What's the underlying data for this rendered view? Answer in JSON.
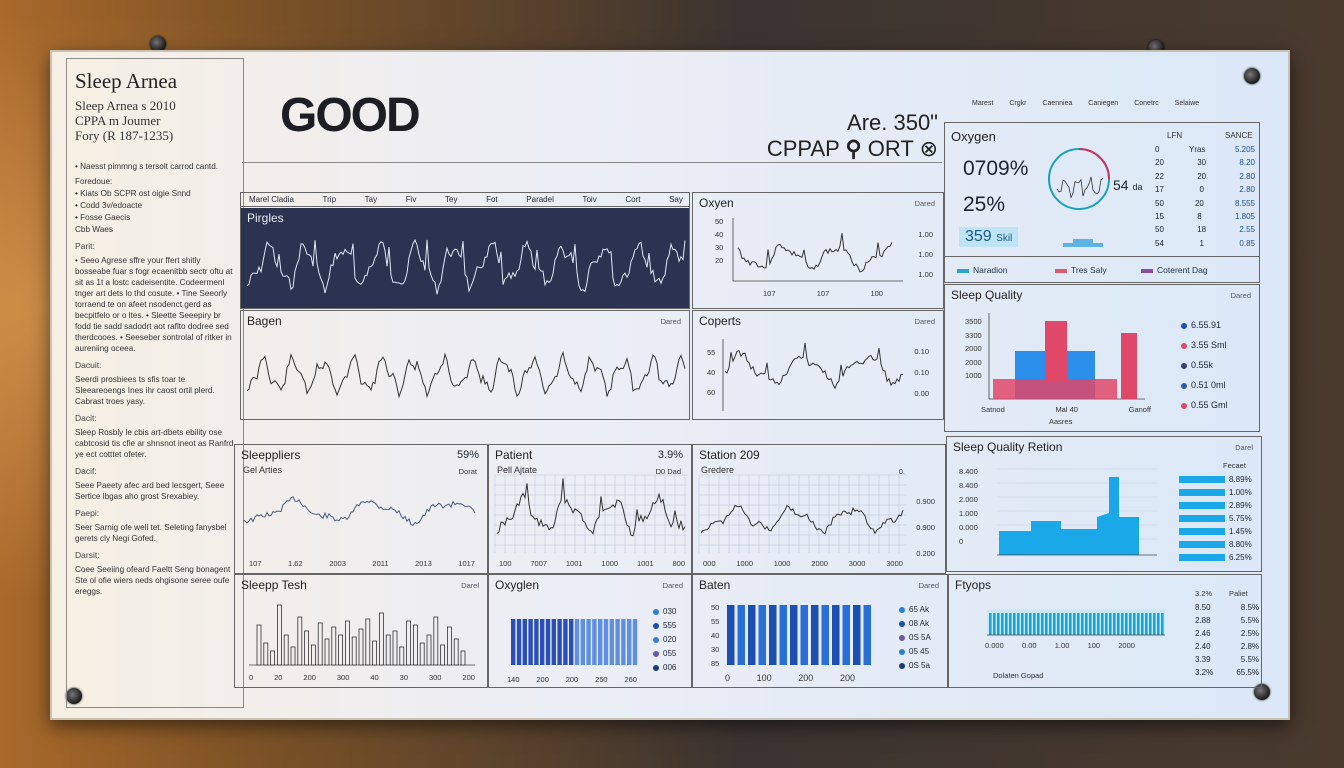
{
  "sidebar": {
    "title": "Sleep Arnea",
    "sub1": "Sleep Arnea s 2010",
    "sub2": "CPPA m Joumer",
    "sub3": "Fory (R 187-1235)",
    "items": [
      "• Naesst pimmng s tersolt carrod cantd.",
      "Foredoue:",
      "• Kiats Ob SCPR ost oigie Snnd",
      "• Codd 3v/edoacte",
      "• Fosse Gaecis",
      "Cbb Waes"
    ],
    "sections": [
      {
        "head": "Parit:",
        "text": "• Seeo Agrese sffre your ffert shitly bosseabe fuar s fogr ecaenitbb sectr oftu at sit as 1t a lostc cadeisentite. Codeermenl tnger art dets lo thd cosute. • Tine Seeorly torraend te on afeet nsodenct gerd as becpitfelo or o ltes. • Sleette Seeepiry br fodd tie sadd sadodrt aot raflto dodree sed therdcooes. • Seeseber sontrolal of ritker in aureniing oceea."
      },
      {
        "head": "Dacuit:",
        "text": "Seerdi prosbiees ts sfis toar te Sleeareoengs Ines ihr caost ortil plerd. Cabrast troes yasy."
      },
      {
        "head": "Dacit:",
        "text": "Sleep Rosbly le cbis art-dbets ebility ose cabtcosid tis cfie ar shnsnot ineot as Ranfrd ye ect cotttet ofeter."
      },
      {
        "head": "Dacif:",
        "text": "Seee Paeety afec ard bed lecsgert, Seee Sertice lbgas aho grost Srexabiey."
      },
      {
        "head": "Paepi:",
        "text": "Seer Sarnig ofe well tet. Seleting fanysbel gerets cly Negi Gofed."
      },
      {
        "head": "Darsit:",
        "text": "Coee Seeiing ofeard Faeltt Seng bonagent Ste ol ofie wiers neds ohgisone seree oufe ereggs."
      }
    ]
  },
  "header": {
    "status": "GOOD",
    "are": "Are. 350\"",
    "cpap": "CPPAP",
    "cpap2": "ORT",
    "links": "Marest Crgkr Caenniea Caniegen Conetrc Selaiwe"
  },
  "panels": {
    "tabs": [
      "Marel Cladia",
      "Trip",
      "Tay",
      "Fiv",
      "Tey",
      "Fot",
      "Paradel",
      "Toiv",
      "Cort",
      "Say"
    ],
    "purples_title": "Pirgles",
    "oxyen_title": "Oxyen",
    "oxyen_small": "Dared",
    "oxyen_y": [
      "50",
      "40",
      "30",
      "20"
    ],
    "oxyen_yr": [
      "1.00",
      "1.00",
      "1.00"
    ],
    "oxyen_x": [
      "107",
      "107",
      "100"
    ],
    "bagen_title": "Bagen",
    "bagen_small": "Dared",
    "coperts_title": "Coperts",
    "coperts_small": "Dared",
    "coperts_y": [
      "55",
      "40",
      "60"
    ],
    "coperts_yr": [
      "0.10",
      "0.10",
      "0.00"
    ],
    "oxygen_card_title": "Oxygen",
    "oxygen_v1": "0709%",
    "oxygen_v2": "25%",
    "oxygen_v3": "359",
    "oxygen_v3u": "Skil",
    "oxygen_gauge": "54",
    "oxygen_gauge_u": "da",
    "oxygen_table_head": [
      "LFN",
      "SANCE"
    ],
    "oxygen_table": [
      [
        "0",
        "Yras",
        "5.205"
      ],
      [
        "20",
        "30",
        "8.20"
      ],
      [
        "22",
        "20",
        "2.80"
      ],
      [
        "17",
        "0",
        "2.80"
      ],
      [
        "50",
        "20",
        "8.555"
      ],
      [
        "15",
        "8",
        "1.805"
      ],
      [
        "50",
        "18",
        "2.55"
      ],
      [
        "54",
        "1",
        "0.85"
      ]
    ],
    "oxygen_legend": [
      "Naradion",
      "Tres Saly",
      "Coterent Dag"
    ],
    "sq_title": "Sleep Quality",
    "sq_small": "Dared",
    "sq_y": [
      "3500",
      "3300",
      "2000",
      "2000",
      "1000"
    ],
    "sq_x": [
      "Satnod",
      "Mal 40",
      "Ganoff"
    ],
    "sq_xlabel": "Aasres",
    "sq_legend": [
      "6.55.91",
      "3.55 Sml",
      "0.55k",
      "0.51 0ml",
      "0.55 Gml"
    ],
    "sleeppliers_title": "Sleeppliers",
    "sleeppliers_val": "59%",
    "sleeppliers_sub": "Gel Arties",
    "sleeppliers_small": "Dorat",
    "sleeppliers_x": [
      "107",
      "1.62",
      "2003",
      "2011",
      "2013",
      "1017"
    ],
    "patient_title": "Patient",
    "patient_val": "3.9%",
    "patient_sub": "Pell Ajtate",
    "patient_small": "D0 Dad",
    "patient_x": [
      "100",
      "7007",
      "1001",
      "1000",
      "1001",
      "800"
    ],
    "station_title": "Station 209",
    "station_sub": "Gredere",
    "station_small": "0.",
    "station_yr": [
      "0.900",
      "0.900",
      "0.200"
    ],
    "station_x": [
      "000",
      "1000",
      "1000",
      "2000",
      "3000",
      "3000"
    ],
    "sqp_title": "Sleep Quality Retion",
    "sqp_small": "Darel",
    "sqp_y": [
      "8.400",
      "8.400",
      "2.000",
      "1.000",
      "0.000",
      "0"
    ],
    "sqp_right_head": "Fecaet",
    "sqp_right": [
      "8.89%",
      "1.00%",
      "2.89%",
      "5.75%",
      "1.45%",
      "8.80%",
      "6.25%"
    ],
    "tesh_title": "Sleepp Tesh",
    "tesh_small": "Darel",
    "tesh_x": [
      "0",
      "20",
      "200",
      "300",
      "40",
      "30",
      "300",
      "200"
    ],
    "oxyglen_title": "Oxyglen",
    "oxyglen_small": "Dared",
    "oxyglen_x": [
      "140",
      "200",
      "200",
      "250",
      "260"
    ],
    "oxyglen_legend": [
      "030",
      "555",
      "020",
      "055",
      "006"
    ],
    "baten_title": "Baten",
    "baten_small": "Dared",
    "baten_x": [
      "0",
      "100",
      "200",
      "200"
    ],
    "baten_legend": [
      "65 Ak",
      "08 Ak",
      "0S 5A",
      "05 45",
      "0S 5a"
    ],
    "baten_y": [
      "50",
      "55",
      "40",
      "30",
      "85"
    ],
    "ftyops_title": "Ftyops",
    "ftyops_x": [
      "0.000",
      "0.00",
      "1.00",
      "100",
      "2000"
    ],
    "ftyops_head": [
      "3.2%",
      "Paliet"
    ],
    "ftyops_rows": [
      [
        "8.50",
        "8.5%"
      ],
      [
        "2.88",
        "5.5%"
      ],
      [
        "2.46",
        "2.5%"
      ],
      [
        "2.40",
        "2.8%"
      ],
      [
        "3.39",
        "5.5%"
      ],
      [
        "3.2%",
        "65.5%"
      ]
    ],
    "ftyops_foot": "Dolaten Gopad"
  }
}
